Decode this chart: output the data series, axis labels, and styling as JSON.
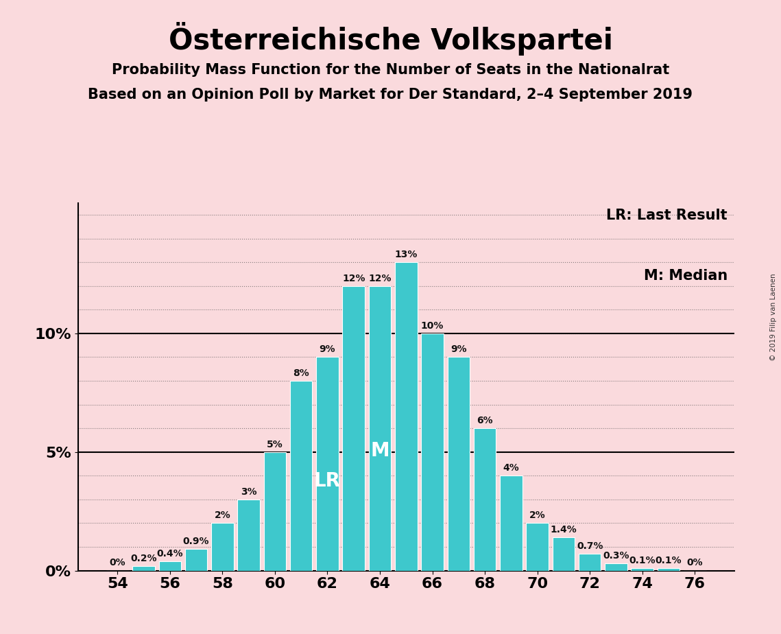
{
  "title": "Österreichische Volkspartei",
  "subtitle1": "Probability Mass Function for the Number of Seats in the Nationalrat",
  "subtitle2": "Based on an Opinion Poll by Market for Der Standard, 2–4 September 2019",
  "watermark": "© 2019 Filip van Laenen",
  "seats": [
    54,
    55,
    56,
    57,
    58,
    59,
    60,
    61,
    62,
    63,
    64,
    65,
    66,
    67,
    68,
    69,
    70,
    71,
    72,
    73,
    74,
    75,
    76
  ],
  "probabilities": [
    0.0,
    0.2,
    0.4,
    0.9,
    2.0,
    3.0,
    5.0,
    8.0,
    9.0,
    12.0,
    12.0,
    13.0,
    10.0,
    9.0,
    6.0,
    4.0,
    2.0,
    1.4,
    0.7,
    0.3,
    0.1,
    0.1,
    0.0
  ],
  "bar_color": "#3ec8cc",
  "bar_edge_color": "#ffffff",
  "background_color": "#fadadd",
  "LR_seat": 62,
  "median_seat": 64,
  "LR_label": "LR",
  "M_label": "M",
  "legend_LR": "LR: Last Result",
  "legend_M": "M: Median",
  "ytick_labels": [
    "0%",
    "5%",
    "10%"
  ],
  "ytick_values": [
    0,
    5,
    10
  ],
  "xtick_labels": [
    "54",
    "56",
    "58",
    "60",
    "62",
    "64",
    "66",
    "68",
    "70",
    "72",
    "74",
    "76"
  ],
  "xtick_values": [
    54,
    56,
    58,
    60,
    62,
    64,
    66,
    68,
    70,
    72,
    74,
    76
  ],
  "grid_color": "#555555",
  "label_color_white": "#ffffff",
  "label_color_dark": "#111111",
  "bar_width": 0.85,
  "xlim": [
    52.5,
    77.5
  ],
  "ylim": [
    0,
    15.5
  ]
}
